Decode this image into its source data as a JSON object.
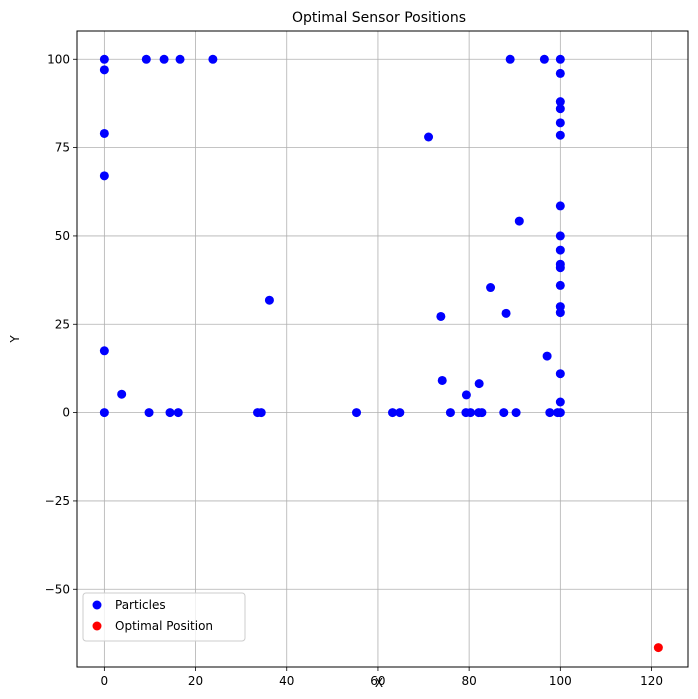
{
  "chart_data": {
    "type": "scatter",
    "title": "Optimal Sensor Positions",
    "xlabel": "X",
    "ylabel": "Y",
    "xlim": [
      -6,
      128
    ],
    "ylim": [
      -72,
      108
    ],
    "xticks": [
      0,
      20,
      40,
      60,
      80,
      100,
      120
    ],
    "yticks": [
      -50,
      -25,
      0,
      25,
      50,
      75,
      100
    ],
    "ytick_labels": [
      "−50",
      "−25",
      "0",
      "25",
      "50",
      "75",
      "100"
    ],
    "grid": true,
    "legend_position": "lower-left",
    "series": [
      {
        "name": "Particles",
        "color": "#0000ff",
        "points": [
          [
            0,
            100
          ],
          [
            0,
            97
          ],
          [
            0,
            79
          ],
          [
            0,
            67
          ],
          [
            0,
            17.5
          ],
          [
            0,
            0
          ],
          [
            3.8,
            5.2
          ],
          [
            9.2,
            100
          ],
          [
            9.8,
            0
          ],
          [
            13.1,
            100
          ],
          [
            14.4,
            0
          ],
          [
            16.2,
            0
          ],
          [
            16.6,
            100
          ],
          [
            23.8,
            100
          ],
          [
            33.6,
            0
          ],
          [
            34.4,
            0
          ],
          [
            36.2,
            31.8
          ],
          [
            55.3,
            0
          ],
          [
            63.2,
            0
          ],
          [
            64.8,
            0
          ],
          [
            71.1,
            78
          ],
          [
            73.8,
            27.2
          ],
          [
            74.1,
            9.1
          ],
          [
            75.9,
            0
          ],
          [
            79.3,
            0
          ],
          [
            79.4,
            5
          ],
          [
            80.3,
            0
          ],
          [
            82.1,
            0
          ],
          [
            82.2,
            8.2
          ],
          [
            82.8,
            0
          ],
          [
            84.7,
            35.4
          ],
          [
            87.6,
            0
          ],
          [
            88.1,
            28.1
          ],
          [
            89,
            100
          ],
          [
            90.3,
            0
          ],
          [
            91,
            54.2
          ],
          [
            96.5,
            100
          ],
          [
            97.1,
            16
          ],
          [
            97.7,
            0
          ],
          [
            99.4,
            0
          ],
          [
            100,
            100
          ],
          [
            100,
            96
          ],
          [
            100,
            88
          ],
          [
            100,
            86
          ],
          [
            100,
            82
          ],
          [
            100,
            78.5
          ],
          [
            100,
            58.5
          ],
          [
            100,
            50
          ],
          [
            100,
            46
          ],
          [
            100,
            42
          ],
          [
            100,
            41
          ],
          [
            100,
            36
          ],
          [
            100,
            30
          ],
          [
            100,
            28.3
          ],
          [
            100,
            11
          ],
          [
            100,
            3
          ],
          [
            100,
            0
          ]
        ]
      },
      {
        "name": "Optimal Position",
        "color": "#ff0000",
        "points": [
          [
            121.5,
            -66.5
          ]
        ]
      }
    ]
  }
}
